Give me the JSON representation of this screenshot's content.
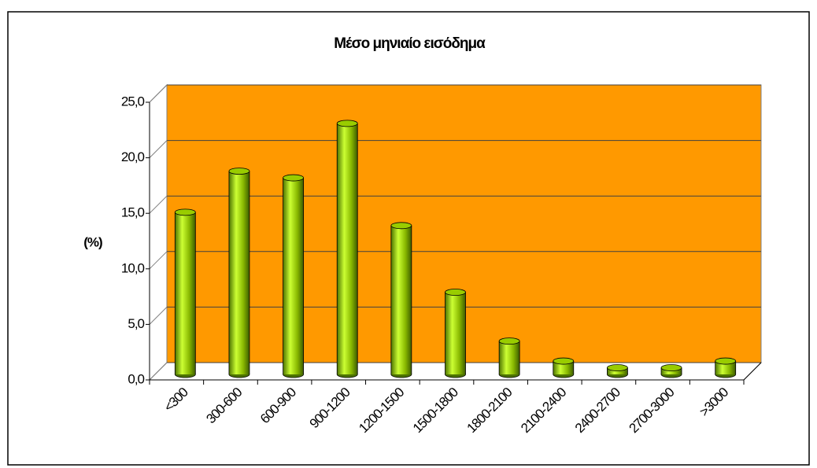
{
  "chart_data": {
    "type": "bar3d",
    "title": "Μέσο μηνιαίο εισόδημα",
    "y_label": "(%)",
    "categories": [
      "<300",
      "300-600",
      "600-900",
      "900-1200",
      "1200-1500",
      "1500-1800",
      "1800-2100",
      "2100-2400",
      "2400-2700",
      "2700-3000",
      ">3000"
    ],
    "values": [
      14.6,
      18.3,
      17.7,
      22.6,
      13.4,
      7.4,
      3.0,
      1.2,
      0.6,
      0.6,
      1.2
    ],
    "color": "#99cc00",
    "wall_color": "#ff9900",
    "ylim": [
      0,
      25
    ],
    "yticks": [
      {
        "value": 0,
        "label": "0,0"
      },
      {
        "value": 5,
        "label": "5,0"
      },
      {
        "value": 10,
        "label": "10,0"
      },
      {
        "value": 15,
        "label": "15,0"
      },
      {
        "value": 20,
        "label": "20,0"
      },
      {
        "value": 25,
        "label": "25,0"
      }
    ],
    "grid": true
  }
}
